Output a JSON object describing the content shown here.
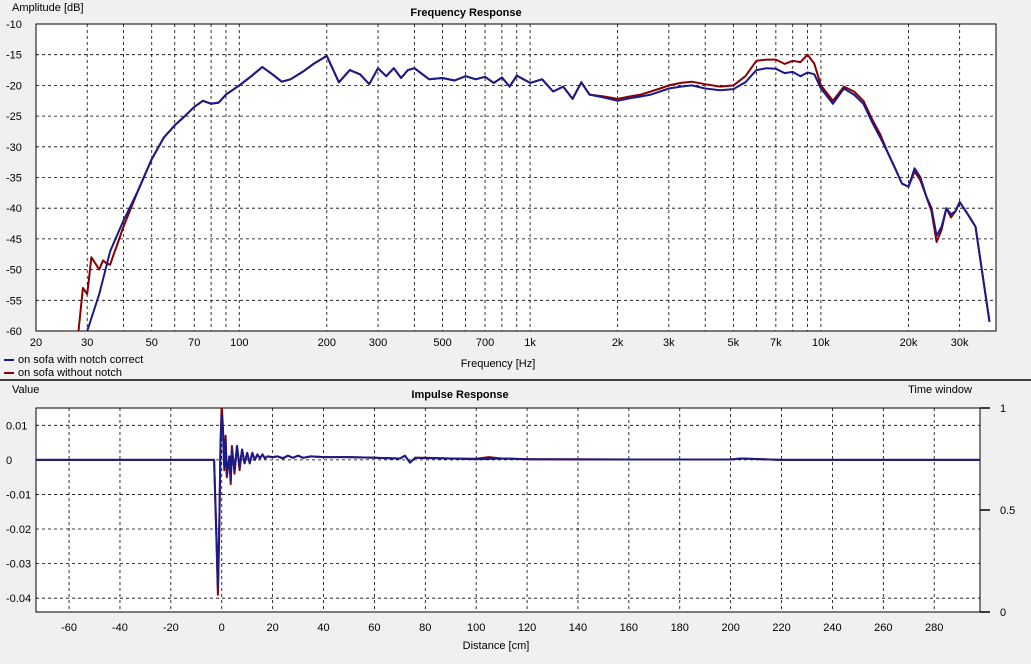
{
  "charts": {
    "frequency": {
      "title": "Frequency Response",
      "ylabel": "Amplitude [dB]",
      "xlabel": "Frequency [Hz]",
      "xticks": [
        {
          "v": 20,
          "label": "20"
        },
        {
          "v": 30,
          "label": "30"
        },
        {
          "v": 50,
          "label": "50"
        },
        {
          "v": 70,
          "label": "70"
        },
        {
          "v": 100,
          "label": "100"
        },
        {
          "v": 200,
          "label": "200"
        },
        {
          "v": 300,
          "label": "300"
        },
        {
          "v": 500,
          "label": "500"
        },
        {
          "v": 700,
          "label": "700"
        },
        {
          "v": 1000,
          "label": "1k"
        },
        {
          "v": 2000,
          "label": "2k"
        },
        {
          "v": 3000,
          "label": "3k"
        },
        {
          "v": 5000,
          "label": "5k"
        },
        {
          "v": 7000,
          "label": "7k"
        },
        {
          "v": 10000,
          "label": "10k"
        },
        {
          "v": 20000,
          "label": "20k"
        },
        {
          "v": 30000,
          "label": "30k"
        }
      ],
      "yticks": [
        {
          "v": -10,
          "label": "-10"
        },
        {
          "v": -15,
          "label": "-15"
        },
        {
          "v": -20,
          "label": "-20"
        },
        {
          "v": -25,
          "label": "-25"
        },
        {
          "v": -30,
          "label": "-30"
        },
        {
          "v": -35,
          "label": "-35"
        },
        {
          "v": -40,
          "label": "-40"
        },
        {
          "v": -45,
          "label": "-45"
        },
        {
          "v": -50,
          "label": "-50"
        },
        {
          "v": -55,
          "label": "-55"
        },
        {
          "v": -60,
          "label": "-60"
        }
      ],
      "legend": [
        {
          "name": "on sofa with notch correct",
          "color": "#1a1a8c"
        },
        {
          "name": "on sofa without notch",
          "color": "#8b0000"
        }
      ]
    },
    "impulse": {
      "title": "Impulse Response",
      "ylabel": "Value",
      "xlabel": "Distance [cm]",
      "y2label": "Time window",
      "xticks": [
        {
          "v": -60,
          "label": "-60"
        },
        {
          "v": -40,
          "label": "-40"
        },
        {
          "v": -20,
          "label": "-20"
        },
        {
          "v": 0,
          "label": "0"
        },
        {
          "v": 20,
          "label": "20"
        },
        {
          "v": 40,
          "label": "40"
        },
        {
          "v": 60,
          "label": "60"
        },
        {
          "v": 80,
          "label": "80"
        },
        {
          "v": 100,
          "label": "100"
        },
        {
          "v": 120,
          "label": "120"
        },
        {
          "v": 140,
          "label": "140"
        },
        {
          "v": 160,
          "label": "160"
        },
        {
          "v": 180,
          "label": "180"
        },
        {
          "v": 200,
          "label": "200"
        },
        {
          "v": 220,
          "label": "220"
        },
        {
          "v": 240,
          "label": "240"
        },
        {
          "v": 260,
          "label": "260"
        },
        {
          "v": 280,
          "label": "280"
        }
      ],
      "yticks": [
        {
          "v": 0.01,
          "label": "0.01"
        },
        {
          "v": 0,
          "label": "0"
        },
        {
          "v": -0.01,
          "label": "-0.01"
        },
        {
          "v": -0.02,
          "label": "-0.02"
        },
        {
          "v": -0.03,
          "label": "-0.03"
        },
        {
          "v": -0.04,
          "label": "-0.04"
        }
      ],
      "y2ticks": [
        {
          "v": 1,
          "label": "1"
        },
        {
          "v": 0.5,
          "label": "0.5"
        },
        {
          "v": 0,
          "label": "0"
        }
      ]
    }
  },
  "chart_data": [
    {
      "type": "line",
      "title": "Frequency Response",
      "xlabel": "Frequency [Hz]",
      "ylabel": "Amplitude [dB]",
      "xscale": "log",
      "xlim": [
        20,
        40000
      ],
      "ylim": [
        -60,
        -10
      ],
      "grid": true,
      "legend_position": "bottom-left",
      "series": [
        {
          "name": "on sofa with notch correct",
          "color": "#1a1a8c",
          "x": [
            30,
            33,
            36,
            40,
            45,
            50,
            55,
            60,
            65,
            70,
            75,
            80,
            85,
            90,
            100,
            110,
            120,
            130,
            140,
            150,
            165,
            180,
            200,
            220,
            240,
            260,
            280,
            300,
            320,
            340,
            360,
            380,
            400,
            450,
            500,
            550,
            600,
            650,
            700,
            750,
            800,
            850,
            900,
            1000,
            1100,
            1200,
            1300,
            1400,
            1500,
            1600,
            1800,
            2000,
            2200,
            2400,
            2600,
            2800,
            3000,
            3300,
            3600,
            4000,
            4500,
            5000,
            5500,
            6000,
            6500,
            7000,
            7500,
            8000,
            8500,
            9000,
            9500,
            10000,
            11000,
            12000,
            13000,
            14000,
            15000,
            16000,
            17000,
            18000,
            19000,
            20000,
            21000,
            22000,
            23000,
            24000,
            25000,
            26000,
            27000,
            28000,
            29000,
            30000,
            32000,
            34000,
            36000,
            38000
          ],
          "y": [
            -60,
            -54,
            -47,
            -42,
            -37,
            -32,
            -28.5,
            -26.5,
            -25,
            -23.5,
            -22.5,
            -23,
            -22.8,
            -21.5,
            -20,
            -18.5,
            -17,
            -18.2,
            -19.4,
            -19,
            -17.8,
            -16.5,
            -15.2,
            -19.5,
            -17.5,
            -18.2,
            -19.8,
            -17.2,
            -18.5,
            -17.2,
            -18.8,
            -17.5,
            -17.2,
            -19,
            -18.8,
            -19.2,
            -18.5,
            -19,
            -18.6,
            -19.6,
            -18.7,
            -20.2,
            -18.4,
            -19.6,
            -19,
            -21,
            -20.2,
            -22.2,
            -19.5,
            -21.5,
            -22,
            -22.5,
            -22.1,
            -21.8,
            -21.5,
            -21,
            -20.5,
            -20.2,
            -20,
            -20.5,
            -20.8,
            -20.6,
            -19.5,
            -17.5,
            -17.2,
            -17.3,
            -18,
            -17.8,
            -18.5,
            -17.9,
            -18.2,
            -20.5,
            -23,
            -20.5,
            -21.5,
            -23,
            -26,
            -28.5,
            -31,
            -33.5,
            -36,
            -36.5,
            -33.5,
            -35,
            -38,
            -40,
            -44.5,
            -43,
            -40,
            -41,
            -40.5,
            -39,
            -41,
            -43,
            -51,
            -58.5
          ]
        },
        {
          "name": "on sofa without notch",
          "color": "#8b0000",
          "x": [
            28,
            29,
            30,
            31,
            32,
            33,
            34,
            35,
            36,
            37,
            38,
            40,
            45,
            50,
            55,
            60,
            65,
            70,
            75,
            80,
            85,
            90,
            100,
            110,
            120,
            130,
            140,
            150,
            165,
            180,
            200,
            220,
            240,
            260,
            280,
            300,
            320,
            340,
            360,
            380,
            400,
            450,
            500,
            550,
            600,
            650,
            700,
            750,
            800,
            850,
            900,
            1000,
            1100,
            1200,
            1300,
            1400,
            1500,
            1600,
            1800,
            2000,
            2200,
            2400,
            2600,
            2800,
            3000,
            3300,
            3600,
            4000,
            4500,
            5000,
            5500,
            6000,
            6500,
            7000,
            7500,
            8000,
            8500,
            9000,
            9500,
            10000,
            11000,
            12000,
            13000,
            14000,
            15000,
            16000,
            17000,
            18000,
            19000,
            20000,
            21000,
            22000,
            23000,
            24000,
            25000,
            26000,
            27000,
            28000,
            29000,
            30000,
            32000,
            34000,
            36000,
            38000
          ],
          "y": [
            -60,
            -53,
            -54,
            -48,
            -49,
            -50,
            -48.5,
            -49,
            -49.2,
            -47.5,
            -46,
            -43,
            -37,
            -32,
            -28.5,
            -26.5,
            -25,
            -23.5,
            -22.5,
            -23,
            -22.8,
            -21.5,
            -20,
            -18.5,
            -17,
            -18.2,
            -19.4,
            -19,
            -17.8,
            -16.5,
            -15.2,
            -19.5,
            -17.5,
            -18.2,
            -19.8,
            -17.2,
            -18.5,
            -17.2,
            -18.8,
            -17.5,
            -17.2,
            -19,
            -18.8,
            -19.2,
            -18.5,
            -19,
            -18.6,
            -19.6,
            -18.7,
            -20.2,
            -18.4,
            -19.6,
            -19,
            -21,
            -20.2,
            -22.2,
            -19.5,
            -21.5,
            -21.8,
            -22.2,
            -21.8,
            -21.5,
            -21,
            -20.5,
            -20,
            -19.6,
            -19.4,
            -19.8,
            -20.2,
            -20,
            -18.5,
            -16,
            -15.8,
            -15.8,
            -16.5,
            -16,
            -16.2,
            -15,
            -16.5,
            -20,
            -22.5,
            -20.2,
            -21,
            -22.5,
            -25.5,
            -28,
            -31,
            -33.5,
            -36,
            -36.5,
            -34,
            -35.5,
            -38,
            -40.5,
            -45.5,
            -43.5,
            -40,
            -41.5,
            -40.5,
            -39,
            -41,
            -43,
            -51,
            -58.5
          ]
        }
      ]
    },
    {
      "type": "line",
      "title": "Impulse Response",
      "xlabel": "Distance [cm]",
      "ylabel": "Value",
      "y2label": "Time window",
      "xlim": [
        -73,
        298
      ],
      "ylim": [
        -0.044,
        0.015
      ],
      "y2lim": [
        0,
        1
      ],
      "grid": true,
      "series": [
        {
          "name": "on sofa with notch correct",
          "color": "#1a1a8c",
          "x": [
            -73,
            -3,
            -2,
            -1.5,
            -1,
            -0.5,
            0,
            0.5,
            1,
            1.5,
            2,
            2.5,
            3,
            3.5,
            4,
            5,
            6,
            7,
            8,
            9,
            10,
            11,
            12,
            13,
            14,
            15,
            16,
            17,
            18,
            20,
            22,
            24,
            26,
            28,
            30,
            32,
            35,
            40,
            50,
            60,
            70,
            72,
            74,
            76,
            80,
            90,
            100,
            110,
            120,
            140,
            160,
            180,
            200,
            204,
            220,
            240,
            260,
            298
          ],
          "y": [
            0,
            0,
            -0.024,
            -0.037,
            -0.02,
            0.004,
            0.013,
            0.008,
            -0.002,
            0.006,
            -0.004,
            -0.002,
            0.001,
            -0.006,
            0.003,
            -0.003,
            0.004,
            -0.002,
            0.003,
            -0.001,
            0.002,
            -0.001,
            0.002,
            0,
            0.0015,
            0.0005,
            0.0015,
            0.0005,
            0.001,
            0.0008,
            0.001,
            0.0005,
            0.0012,
            0.0006,
            0.0012,
            0.0006,
            0.001,
            0.0008,
            0.0008,
            0.0006,
            0.0004,
            0.0012,
            -0.0008,
            0.0006,
            0.0005,
            0.0004,
            0.0002,
            0.0004,
            0.0002,
            0.0001,
            0.0001,
            0.0001,
            0.0001,
            0.0004,
            0,
            0,
            0,
            0
          ]
        },
        {
          "name": "on sofa without notch",
          "color": "#8b0000",
          "x": [
            -73,
            -3,
            -2,
            -1.5,
            -1,
            -0.5,
            0,
            0.5,
            1,
            1.5,
            2,
            2.5,
            3,
            3.5,
            4,
            5,
            6,
            7,
            8,
            9,
            10,
            11,
            12,
            13,
            14,
            15,
            16,
            17,
            18,
            20,
            22,
            24,
            26,
            28,
            30,
            32,
            35,
            40,
            50,
            60,
            70,
            72,
            74,
            76,
            80,
            90,
            100,
            105,
            110,
            120,
            140,
            160,
            180,
            200,
            204,
            220,
            240,
            260,
            298
          ],
          "y": [
            0,
            0,
            -0.026,
            -0.039,
            -0.022,
            0.005,
            0.016,
            0.009,
            -0.003,
            0.007,
            -0.005,
            -0.002,
            0.001,
            -0.007,
            0.004,
            -0.004,
            0.004,
            -0.003,
            0.003,
            -0.001,
            0.002,
            -0.001,
            0.002,
            0,
            0.0016,
            0.0004,
            0.0016,
            0.0004,
            0.001,
            0.0008,
            0.001,
            0.0004,
            0.0012,
            0.0006,
            0.0012,
            0.0006,
            0.001,
            0.0008,
            0.0008,
            0.0006,
            0.0004,
            0.0012,
            -0.0008,
            0.0006,
            0.0006,
            0.0004,
            0.0003,
            0.0008,
            0.0004,
            0.0002,
            0.0002,
            0.0001,
            0.0001,
            0.0001,
            0.0004,
            0,
            0,
            0,
            0
          ]
        }
      ]
    }
  ]
}
